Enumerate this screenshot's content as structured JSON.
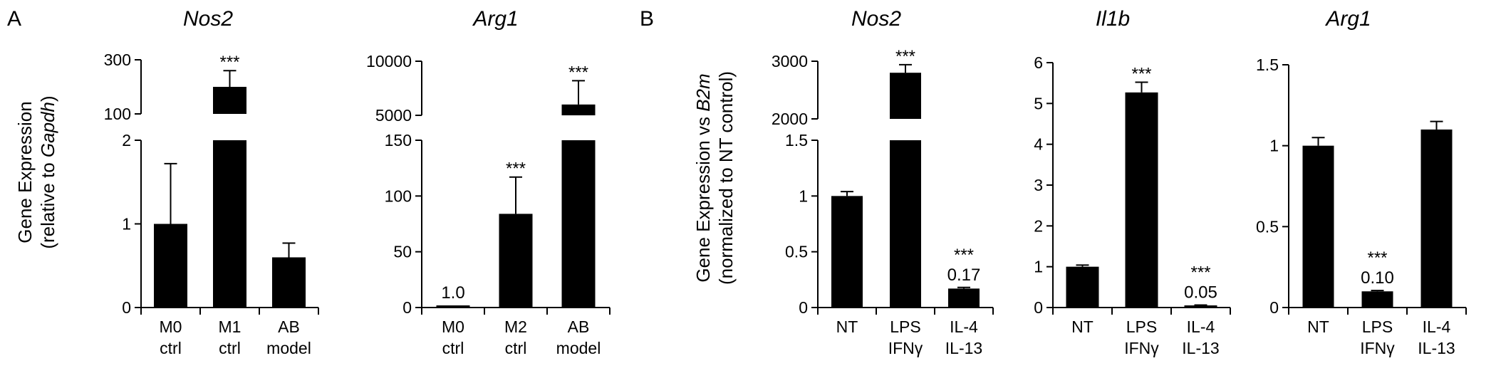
{
  "panel_labels": [
    "A",
    "B"
  ],
  "chart_data": [
    {
      "type": "bar",
      "panel": "A",
      "title": "Nos2",
      "ylabel": "Gene Expression",
      "ylabel_line2_prefix": "(relative to ",
      "ylabel_line2_italic": "Gapdh",
      "ylabel_line2_suffix": ")",
      "categories": [
        [
          "M0",
          "ctrl"
        ],
        [
          "M1",
          "ctrl"
        ],
        [
          "AB",
          "model"
        ]
      ],
      "values": [
        1.0,
        200,
        0.6
      ],
      "errors": [
        0.72,
        60,
        0.17
      ],
      "stars": [
        "",
        "***",
        ""
      ],
      "value_labels": [
        "",
        "",
        ""
      ],
      "axis_break": true,
      "lower_ylim": [
        0,
        2
      ],
      "lower_ticks": [
        "0",
        "1",
        "2"
      ],
      "upper_ylim": [
        100,
        300
      ],
      "upper_ticks": [
        "100",
        "300"
      ]
    },
    {
      "type": "bar",
      "panel": "A",
      "title": "Arg1",
      "categories": [
        [
          "M0",
          "ctrl"
        ],
        [
          "M2",
          "ctrl"
        ],
        [
          "AB",
          "model"
        ]
      ],
      "values": [
        1.0,
        84,
        6000
      ],
      "errors": [
        0,
        33,
        2200
      ],
      "stars": [
        "",
        "***",
        "***"
      ],
      "value_labels": [
        "1.0",
        "",
        ""
      ],
      "axis_break": true,
      "lower_ylim": [
        0,
        150
      ],
      "lower_ticks": [
        "0",
        "50",
        "100",
        "150"
      ],
      "upper_ylim": [
        5000,
        10000
      ],
      "upper_ticks": [
        "5000",
        "10000"
      ]
    },
    {
      "type": "bar",
      "panel": "B",
      "title": "Nos2",
      "ylabel_line1_prefix": "Gene Expression vs ",
      "ylabel_line1_italic": "B2m",
      "ylabel_line2": "(normalized to NT control)",
      "categories": [
        [
          "NT"
        ],
        [
          "LPS",
          "IFNγ"
        ],
        [
          "IL-4",
          "IL-13"
        ]
      ],
      "values": [
        1.0,
        2800,
        0.17
      ],
      "errors": [
        0.04,
        140,
        0.01
      ],
      "stars": [
        "",
        "***",
        "***"
      ],
      "value_labels": [
        "",
        "",
        "0.17"
      ],
      "axis_break": true,
      "lower_ylim": [
        0,
        1.5
      ],
      "lower_ticks": [
        "0",
        "0.5",
        "1",
        "1.5"
      ],
      "upper_ylim": [
        2000,
        3000
      ],
      "upper_ticks": [
        "2000",
        "3000"
      ]
    },
    {
      "type": "bar",
      "panel": "B",
      "title": "Il1b",
      "categories": [
        [
          "NT"
        ],
        [
          "LPS",
          "IFNγ"
        ],
        [
          "IL-4",
          "IL-13"
        ]
      ],
      "values": [
        1.0,
        5.27,
        0.05
      ],
      "errors": [
        0.04,
        0.25,
        0.01
      ],
      "stars": [
        "",
        "***",
        "***"
      ],
      "value_labels": [
        "",
        "",
        "0.05"
      ],
      "axis_break": false,
      "ylim": [
        0,
        6
      ],
      "ticks": [
        "0",
        "1",
        "2",
        "3",
        "4",
        "5",
        "6"
      ]
    },
    {
      "type": "bar",
      "panel": "B",
      "title": "Arg1",
      "categories": [
        [
          "NT"
        ],
        [
          "LPS",
          "IFNγ"
        ],
        [
          "IL-4",
          "IL-13"
        ]
      ],
      "values": [
        1.0,
        0.1,
        1.1
      ],
      "errors": [
        0.05,
        0.005,
        0.05
      ],
      "stars": [
        "",
        "***",
        ""
      ],
      "value_labels": [
        "",
        "0.10",
        ""
      ],
      "axis_break": false,
      "ylim": [
        0,
        1.5
      ],
      "ticks": [
        "0",
        "0.5",
        "1",
        "1.5"
      ]
    }
  ]
}
